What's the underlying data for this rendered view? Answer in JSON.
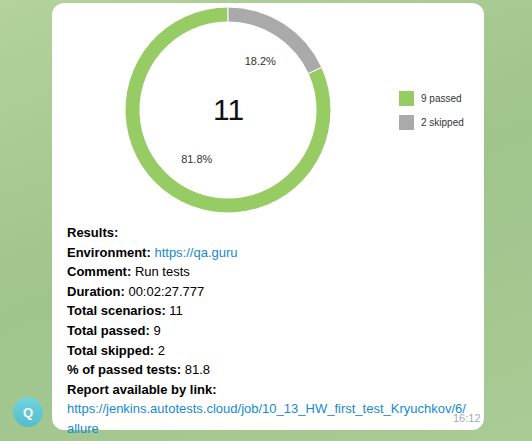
{
  "chart_data": {
    "type": "donut",
    "categories": [
      "9 passed",
      "2 skipped"
    ],
    "values": [
      81.8,
      18.2
    ],
    "value_labels": [
      "81.8%",
      "18.2%"
    ],
    "colors": [
      "#97cc64",
      "#aaaaaa"
    ],
    "data_labels": true,
    "legend": "right",
    "center_value": 11
  },
  "message": {
    "avatar": "Q",
    "title": "Results:",
    "lines": [
      {
        "label": "Environment:",
        "value": "https://qa.guru",
        "link": true
      },
      {
        "label": "Comment:",
        "value": "Run tests"
      },
      {
        "label": "Duration:",
        "value": "00:02:27.777"
      },
      {
        "label": "Total scenarios:",
        "value": 11
      },
      {
        "label": "Total passed:",
        "value": 9
      },
      {
        "label": "Total skipped:",
        "value": 2
      },
      {
        "label": "% of passed tests:",
        "value": 81.8
      }
    ],
    "link_label": "Report available by link:",
    "link": "https://jenkins.autotests.cloud/job/10_13_HW_first_test_Kryuchkov/6/allure",
    "time": "16:12"
  }
}
